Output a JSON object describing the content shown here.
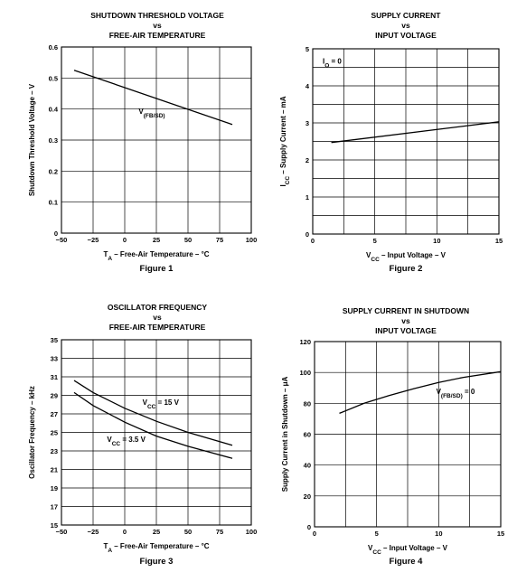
{
  "chart_data": [
    {
      "type": "line",
      "figure_label": "Figure 1",
      "title": [
        "SHUTDOWN THRESHOLD VOLTAGE",
        "vs",
        "FREE-AIR TEMPERATURE"
      ],
      "xlabel": {
        "main": "T",
        "sub": "A",
        "rest": " – Free-Air Temperature – °C"
      },
      "ylabel": {
        "main": "Shutdown Threshold Voltage – V"
      },
      "xlim": [
        -50,
        100
      ],
      "ylim": [
        0,
        0.6
      ],
      "x_ticks": [
        -50,
        -25,
        0,
        25,
        50,
        75,
        100
      ],
      "x_tick_labels": [
        "−50",
        "−25",
        "0",
        "25",
        "50",
        "75",
        "100"
      ],
      "y_ticks": [
        0,
        0.1,
        0.2,
        0.3,
        0.4,
        0.5,
        0.6
      ],
      "y_tick_labels": [
        "0",
        "0.1",
        "0.2",
        "0.3",
        "0.4",
        "0.5",
        "0.6"
      ],
      "grid": true,
      "series": [
        {
          "x": [
            -40,
            85
          ],
          "y": [
            0.525,
            0.35
          ]
        }
      ],
      "annotations": [
        {
          "main": "V",
          "sub": "(FB/SD)",
          "rest": "",
          "x": 11,
          "y": 0.385
        }
      ]
    },
    {
      "type": "line",
      "figure_label": "Figure 2",
      "title": [
        "SUPPLY CURRENT",
        "vs",
        "INPUT VOLTAGE"
      ],
      "xlabel": {
        "main": "V",
        "sub": "CC",
        "rest": " – Input Voltage – V"
      },
      "ylabel": {
        "main": "I",
        "sub": "CC",
        "rest": " – Supply Current – mA"
      },
      "xlim": [
        0,
        15
      ],
      "ylim": [
        0,
        5
      ],
      "x_ticks": [
        0,
        5,
        10,
        15
      ],
      "x_tick_labels": [
        "0",
        "5",
        "10",
        "15"
      ],
      "x_grid_step": 2.5,
      "y_ticks": [
        0,
        1,
        2,
        3,
        4,
        5
      ],
      "y_tick_labels": [
        "0",
        "1",
        "2",
        "3",
        "4",
        "5"
      ],
      "y_grid_step": 0.5,
      "grid": true,
      "series": [
        {
          "x": [
            1.5,
            15
          ],
          "y": [
            2.47,
            3.03
          ]
        }
      ],
      "annotations": [
        {
          "main": "I",
          "sub": "O",
          "rest": " = 0",
          "x": 0.8,
          "y": 4.6
        }
      ]
    },
    {
      "type": "line",
      "figure_label": "Figure 3",
      "title": [
        "OSCILLATOR FREQUENCY",
        "vs",
        "FREE-AIR TEMPERATURE"
      ],
      "xlabel": {
        "main": "T",
        "sub": "A",
        "rest": " – Free-Air Temperature – °C"
      },
      "ylabel": {
        "main": "Oscillator Frequency – kHz"
      },
      "xlim": [
        -50,
        100
      ],
      "ylim": [
        15,
        35
      ],
      "x_ticks": [
        -50,
        -25,
        0,
        25,
        50,
        75,
        100
      ],
      "x_tick_labels": [
        "−50",
        "−25",
        "0",
        "25",
        "50",
        "75",
        "100"
      ],
      "y_ticks": [
        15,
        17,
        19,
        21,
        23,
        25,
        27,
        29,
        31,
        33,
        35
      ],
      "y_tick_labels": [
        "15",
        "17",
        "19",
        "21",
        "23",
        "25",
        "27",
        "29",
        "31",
        "33",
        "35"
      ],
      "grid": true,
      "series": [
        {
          "x": [
            -40,
            -25,
            0,
            25,
            50,
            85
          ],
          "y": [
            30.6,
            29.3,
            27.6,
            26.2,
            25.0,
            23.6
          ]
        },
        {
          "x": [
            -40,
            -25,
            0,
            25,
            50,
            85
          ],
          "y": [
            29.3,
            27.9,
            26.1,
            24.6,
            23.5,
            22.2
          ]
        }
      ],
      "annotations": [
        {
          "main": "V",
          "sub": "CC",
          "rest": " = 15 V",
          "x": 14,
          "y": 28.0
        },
        {
          "main": "V",
          "sub": "CC",
          "rest": " = 3.5 V",
          "x": -14,
          "y": 24.0
        }
      ]
    },
    {
      "type": "line",
      "figure_label": "Figure 4",
      "title": [
        "SUPPLY CURRENT IN SHUTDOWN",
        "vs",
        "INPUT VOLTAGE"
      ],
      "xlabel": {
        "main": "V",
        "sub": "CC",
        "rest": " – Input Voltage – V"
      },
      "ylabel": {
        "main": "Supply Current in Shutdown – μA"
      },
      "xlim": [
        0,
        15
      ],
      "ylim": [
        0,
        120
      ],
      "x_ticks": [
        0,
        5,
        10,
        15
      ],
      "x_tick_labels": [
        "0",
        "5",
        "10",
        "15"
      ],
      "x_grid_step": 2.5,
      "y_ticks": [
        0,
        20,
        40,
        60,
        80,
        100,
        120
      ],
      "y_tick_labels": [
        "0",
        "20",
        "40",
        "60",
        "80",
        "100",
        "120"
      ],
      "y_grid_step": 20,
      "grid": true,
      "series": [
        {
          "x": [
            2,
            4,
            6,
            8,
            10,
            12,
            15
          ],
          "y": [
            73.5,
            80,
            85,
            89.5,
            93.5,
            96.8,
            100.5
          ]
        }
      ],
      "annotations": [
        {
          "main": "V",
          "sub": "(FB/SD)",
          "rest": " = 0",
          "x": 9.8,
          "y": 86
        }
      ]
    }
  ]
}
